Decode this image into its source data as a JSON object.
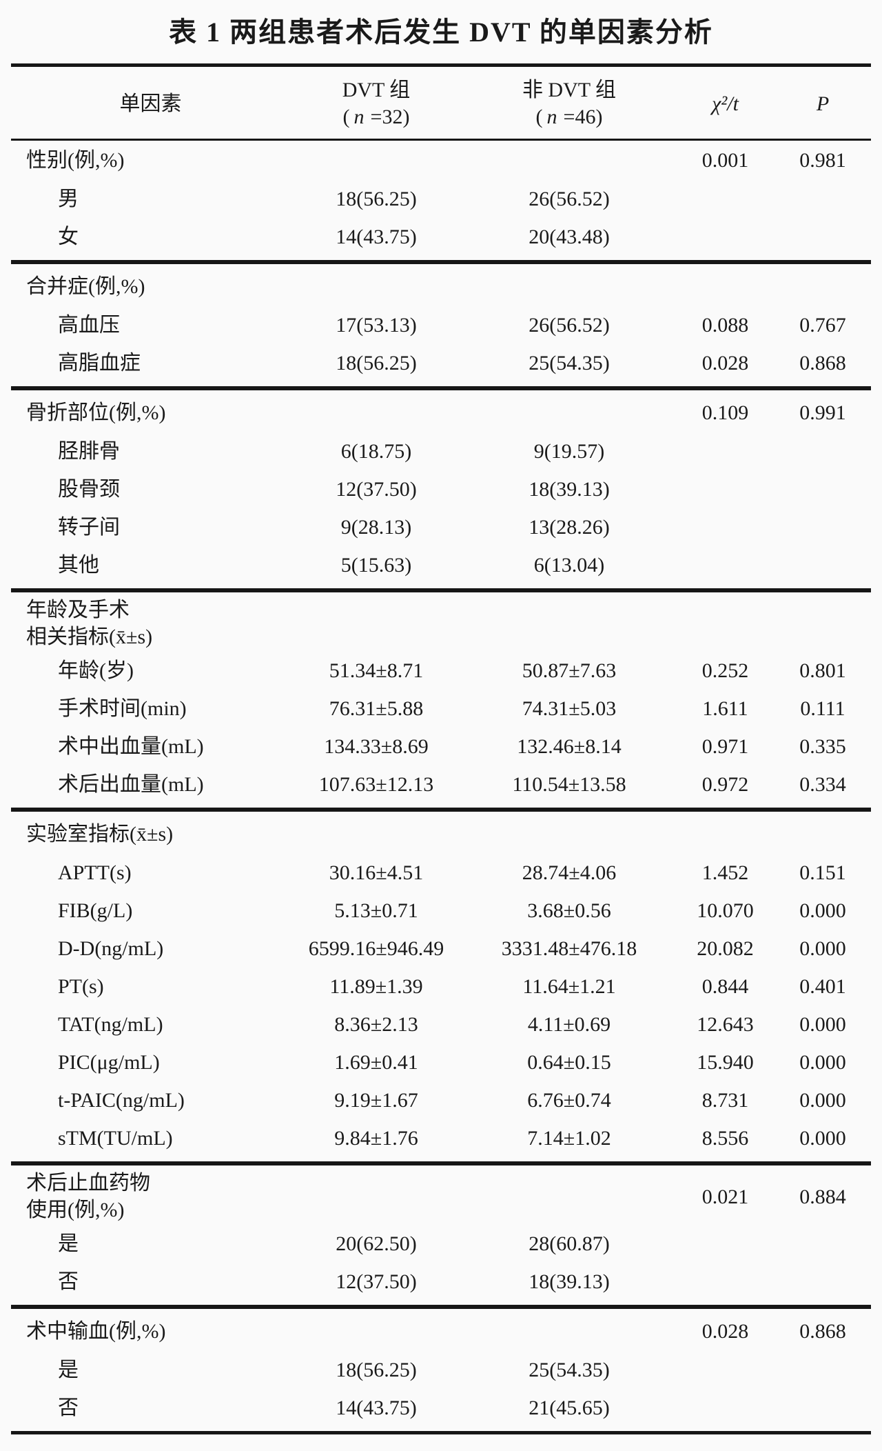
{
  "title": "表 1  两组患者术后发生 DVT 的单因素分析",
  "colors": {
    "background": "#fafafa",
    "ink": "#1a1a1a",
    "rule": "#161616"
  },
  "columns": {
    "factor": "单因素",
    "group1": {
      "name": "DVT 组",
      "paren_open": "(",
      "n_symbol": "n",
      "n_rest": "=32)"
    },
    "group2": {
      "name": "非 DVT 组",
      "paren_open": "(",
      "n_symbol": "n",
      "n_rest": "=46)"
    },
    "stat": "χ²/t",
    "p": "P"
  },
  "sections": [
    {
      "header": {
        "label": "性别(例,%)",
        "stat": "0.001",
        "p": "0.981"
      },
      "rows": [
        {
          "label": "男",
          "g1": "18(56.25)",
          "g2": "26(56.52)"
        },
        {
          "label": "女",
          "g1": "14(43.75)",
          "g2": "20(43.48)"
        }
      ]
    },
    {
      "header": {
        "label": "合并症(例,%)"
      },
      "rows": [
        {
          "label": "高血压",
          "g1": "17(53.13)",
          "g2": "26(56.52)",
          "stat": "0.088",
          "p": "0.767"
        },
        {
          "label": "高脂血症",
          "g1": "18(56.25)",
          "g2": "25(54.35)",
          "stat": "0.028",
          "p": "0.868"
        }
      ]
    },
    {
      "header": {
        "label": "骨折部位(例,%)",
        "stat": "0.109",
        "p": "0.991"
      },
      "rows": [
        {
          "label": "胫腓骨",
          "g1": "6(18.75)",
          "g2": "9(19.57)"
        },
        {
          "label": "股骨颈",
          "g1": "12(37.50)",
          "g2": "18(39.13)"
        },
        {
          "label": "转子间",
          "g1": "9(28.13)",
          "g2": "13(28.26)"
        },
        {
          "label": "其他",
          "g1": "5(15.63)",
          "g2": "6(13.04)"
        }
      ]
    },
    {
      "header": {
        "label": "年龄及手术\n相关指标(x̄±s)"
      },
      "rows": [
        {
          "label": "年龄(岁)",
          "g1": "51.34±8.71",
          "g2": "50.87±7.63",
          "stat": "0.252",
          "p": "0.801"
        },
        {
          "label": "手术时间(min)",
          "g1": "76.31±5.88",
          "g2": "74.31±5.03",
          "stat": "1.611",
          "p": "0.111"
        },
        {
          "label": "术中出血量(mL)",
          "g1": "134.33±8.69",
          "g2": "132.46±8.14",
          "stat": "0.971",
          "p": "0.335"
        },
        {
          "label": "术后出血量(mL)",
          "g1": "107.63±12.13",
          "g2": "110.54±13.58",
          "stat": "0.972",
          "p": "0.334"
        }
      ]
    },
    {
      "header": {
        "label": "实验室指标(x̄±s)"
      },
      "rows": [
        {
          "label": "APTT(s)",
          "g1": "30.16±4.51",
          "g2": "28.74±4.06",
          "stat": "1.452",
          "p": "0.151"
        },
        {
          "label": "FIB(g/L)",
          "g1": "5.13±0.71",
          "g2": "3.68±0.56",
          "stat": "10.070",
          "p": "0.000"
        },
        {
          "label": "D-D(ng/mL)",
          "g1": "6599.16±946.49",
          "g2": "3331.48±476.18",
          "stat": "20.082",
          "p": "0.000"
        },
        {
          "label": "PT(s)",
          "g1": "11.89±1.39",
          "g2": "11.64±1.21",
          "stat": "0.844",
          "p": "0.401"
        },
        {
          "label": "TAT(ng/mL)",
          "g1": "8.36±2.13",
          "g2": "4.11±0.69",
          "stat": "12.643",
          "p": "0.000"
        },
        {
          "label": "PIC(μg/mL)",
          "g1": "1.69±0.41",
          "g2": "0.64±0.15",
          "stat": "15.940",
          "p": "0.000"
        },
        {
          "label": "t-PAIC(ng/mL)",
          "g1": "9.19±1.67",
          "g2": "6.76±0.74",
          "stat": "8.731",
          "p": "0.000"
        },
        {
          "label": "sTM(TU/mL)",
          "g1": "9.84±1.76",
          "g2": "7.14±1.02",
          "stat": "8.556",
          "p": "0.000"
        }
      ]
    },
    {
      "header": {
        "label": "术后止血药物\n使用(例,%)",
        "stat": "0.021",
        "p": "0.884"
      },
      "rows": [
        {
          "label": "是",
          "g1": "20(62.50)",
          "g2": "28(60.87)"
        },
        {
          "label": "否",
          "g1": "12(37.50)",
          "g2": "18(39.13)"
        }
      ]
    },
    {
      "header": {
        "label": "术中输血(例,%)",
        "stat": "0.028",
        "p": "0.868"
      },
      "rows": [
        {
          "label": "是",
          "g1": "18(56.25)",
          "g2": "25(54.35)"
        },
        {
          "label": "否",
          "g1": "14(43.75)",
          "g2": "21(45.65)"
        }
      ]
    }
  ]
}
